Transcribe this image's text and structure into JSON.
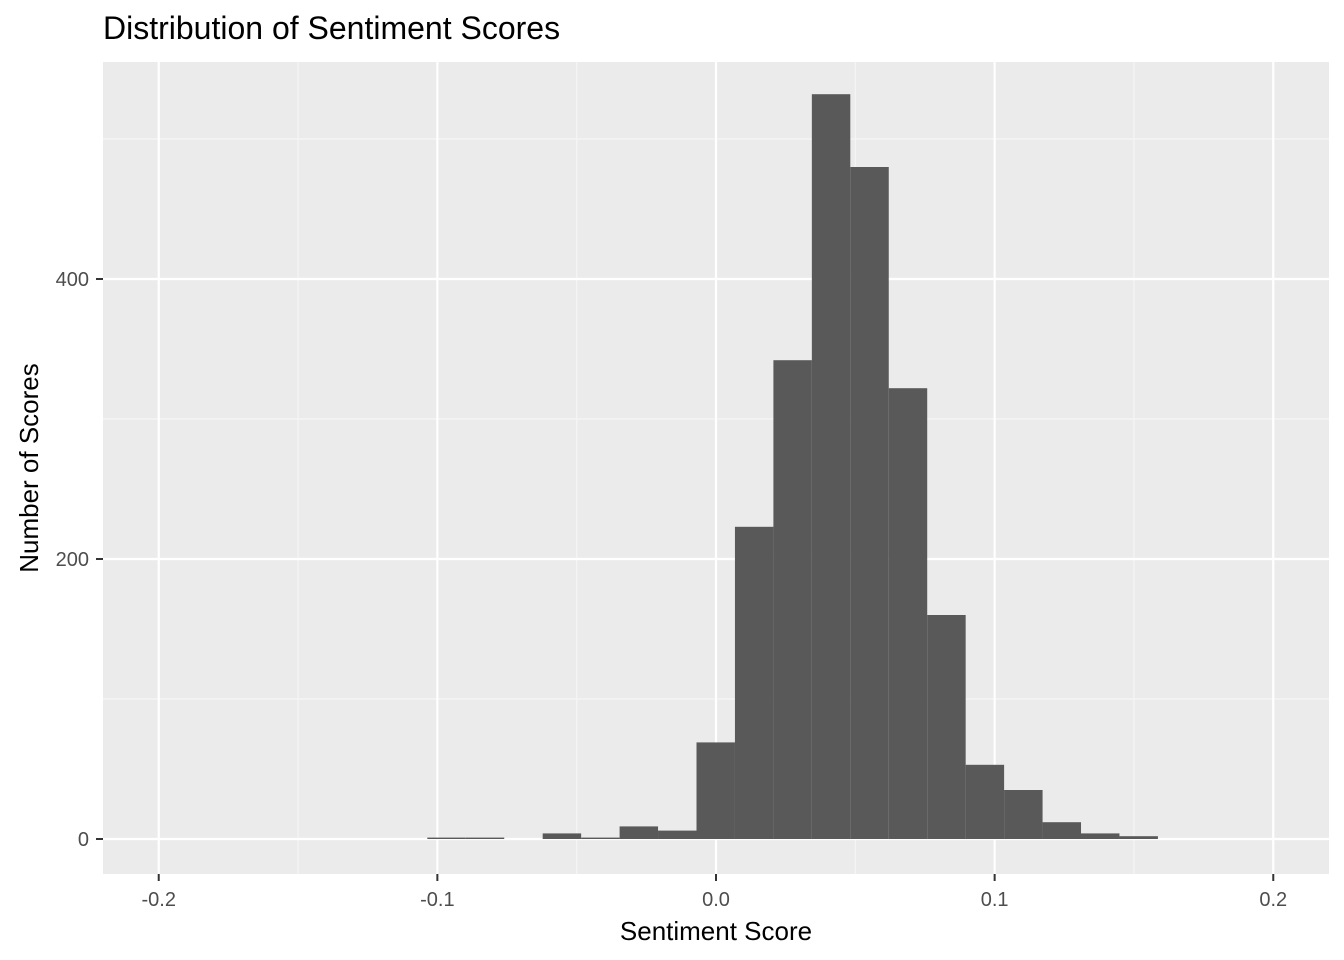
{
  "chart_data": {
    "type": "bar",
    "subtype": "histogram",
    "title": "Distribution of Sentiment Scores",
    "xlabel": "Sentiment Score",
    "ylabel": "Number of Scores",
    "xlim": [
      -0.22,
      0.22
    ],
    "ylim": [
      -25,
      555
    ],
    "x_ticks": [
      -0.2,
      -0.1,
      0.0,
      0.1,
      0.2
    ],
    "x_tick_labels": [
      "-0.2",
      "-0.1",
      "0.0",
      "0.1",
      "0.2"
    ],
    "y_ticks": [
      0,
      200,
      400
    ],
    "y_tick_labels": [
      "0",
      "200",
      "400"
    ],
    "grid": true,
    "bin_width": 0.0138,
    "bins": [
      {
        "x_start": -0.1036,
        "x_end": -0.0898,
        "count": 1
      },
      {
        "x_start": -0.0898,
        "x_end": -0.076,
        "count": 1
      },
      {
        "x_start": -0.0622,
        "x_end": -0.0484,
        "count": 4
      },
      {
        "x_start": -0.0484,
        "x_end": -0.0346,
        "count": 1
      },
      {
        "x_start": -0.0346,
        "x_end": -0.0208,
        "count": 9
      },
      {
        "x_start": -0.0208,
        "x_end": -0.007,
        "count": 6
      },
      {
        "x_start": -0.007,
        "x_end": 0.0068,
        "count": 69
      },
      {
        "x_start": 0.0068,
        "x_end": 0.0206,
        "count": 223
      },
      {
        "x_start": 0.0206,
        "x_end": 0.0344,
        "count": 342
      },
      {
        "x_start": 0.0344,
        "x_end": 0.0482,
        "count": 532
      },
      {
        "x_start": 0.0482,
        "x_end": 0.062,
        "count": 480
      },
      {
        "x_start": 0.062,
        "x_end": 0.0758,
        "count": 322
      },
      {
        "x_start": 0.0758,
        "x_end": 0.0896,
        "count": 160
      },
      {
        "x_start": 0.0896,
        "x_end": 0.1034,
        "count": 53
      },
      {
        "x_start": 0.1034,
        "x_end": 0.1172,
        "count": 35
      },
      {
        "x_start": 0.1172,
        "x_end": 0.131,
        "count": 12
      },
      {
        "x_start": 0.131,
        "x_end": 0.1448,
        "count": 4
      },
      {
        "x_start": 0.1448,
        "x_end": 0.1586,
        "count": 2
      }
    ],
    "colors": {
      "panel_background": "#ebebeb",
      "grid_major": "#ffffff",
      "grid_minor": "#f5f5f5",
      "bar_fill": "#595959"
    }
  }
}
